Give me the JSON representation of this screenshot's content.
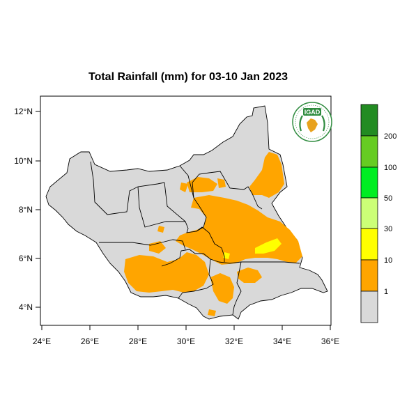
{
  "map": {
    "title": "Total Rainfall (mm) for 03-10 Jan 2023",
    "region": "South Sudan",
    "x_ticks": [
      "24°E",
      "26°E",
      "28°E",
      "30°E",
      "32°E",
      "34°E",
      "36°E"
    ],
    "y_ticks": [
      "12°N",
      "10°N",
      "8°N",
      "6°N",
      "4°N"
    ],
    "logo_text": "IGAD"
  },
  "legend": {
    "classes": [
      {
        "color": "#d9d9d9",
        "label": "1"
      },
      {
        "color": "#ffa500",
        "label": "10"
      },
      {
        "color": "#ffff00",
        "label": "30"
      },
      {
        "color": "#ccff77",
        "label": "50"
      },
      {
        "color": "#00ee22",
        "label": "100"
      },
      {
        "color": "#66cc22",
        "label": "200"
      },
      {
        "color": "#228b22",
        "label": ""
      }
    ]
  },
  "colors": {
    "land": "#d9d9d9",
    "rain_1_10": "#ffa500",
    "rain_10_30": "#ffff00",
    "border": "#000000"
  }
}
